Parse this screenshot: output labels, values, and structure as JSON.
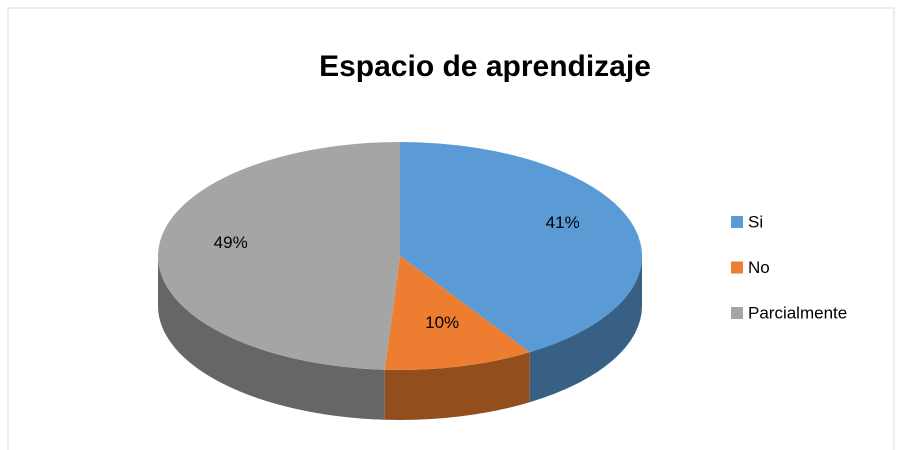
{
  "chart_data": {
    "type": "pie",
    "title": "Espacio de aprendizaje",
    "categories": [
      "Si",
      "No",
      "Parcialmente"
    ],
    "values": [
      41,
      10,
      49
    ],
    "value_labels": [
      "41%",
      "10%",
      "49%"
    ],
    "colors": [
      "#5b9bd5",
      "#ed7d31",
      "#a5a5a5"
    ],
    "legend": "right"
  }
}
